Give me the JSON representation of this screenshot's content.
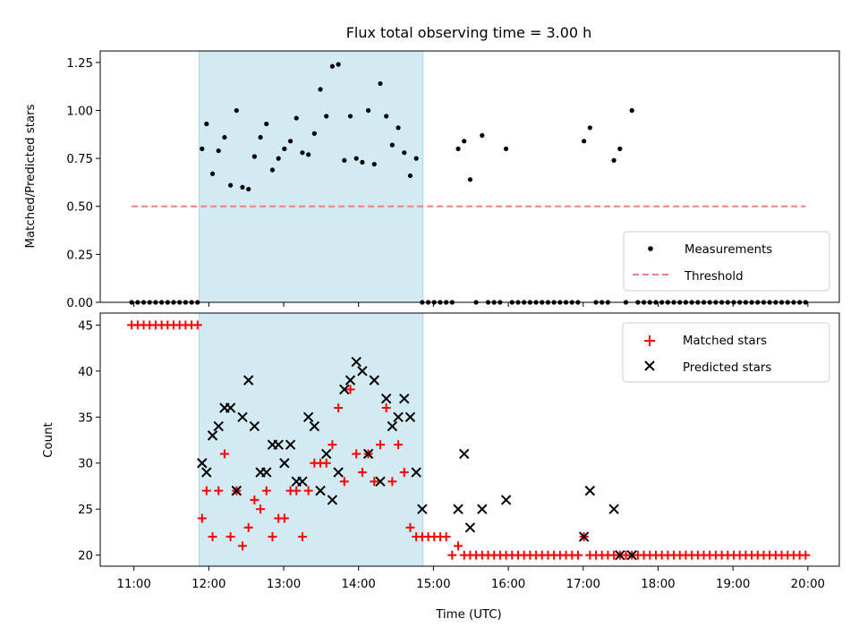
{
  "chart_data": [
    {
      "type": "scatter",
      "title": "Flux total observing time = 3.00 h",
      "xlabel": "",
      "ylabel": "Matched/Predicted stars",
      "x_unit": "decimal hours UTC",
      "xlim": [
        10.55,
        20.42
      ],
      "ylim": [
        0,
        1.31
      ],
      "x_ticks": [
        11,
        12,
        13,
        14,
        15,
        16,
        17,
        18,
        19,
        20
      ],
      "y_ticks": [
        0,
        0.25,
        0.5,
        0.75,
        1.0,
        1.25
      ],
      "y_tick_labels": [
        "0.00",
        "0.25",
        "0.50",
        "0.75",
        "1.00",
        "1.25"
      ],
      "highlight_span": {
        "x0": 11.87,
        "x1": 14.86,
        "color": "#add8e6"
      },
      "grid": false,
      "legend_position": "lower-right",
      "series": [
        {
          "name": "Measurements",
          "marker": "dot",
          "color": "#000000",
          "x": [
            10.97,
            11.05,
            11.13,
            11.21,
            11.29,
            11.37,
            11.45,
            11.53,
            11.61,
            11.69,
            11.77,
            11.85,
            11.91,
            11.97,
            12.05,
            12.13,
            12.21,
            12.29,
            12.37,
            12.45,
            12.53,
            12.61,
            12.69,
            12.77,
            12.85,
            12.93,
            13.01,
            13.09,
            13.17,
            13.25,
            13.33,
            13.41,
            13.49,
            13.57,
            13.65,
            13.73,
            13.81,
            13.89,
            13.97,
            14.05,
            14.13,
            14.21,
            14.29,
            14.37,
            14.45,
            14.53,
            14.61,
            14.69,
            14.77,
            14.85,
            14.93,
            15.01,
            15.09,
            15.17,
            15.25,
            15.33,
            15.41,
            15.49,
            15.57,
            15.65,
            15.73,
            15.81,
            15.89,
            15.97,
            16.05,
            16.13,
            16.21,
            16.29,
            16.37,
            16.45,
            16.53,
            16.61,
            16.69,
            16.77,
            16.85,
            16.93,
            17.01,
            17.09,
            17.17,
            17.25,
            17.33,
            17.41,
            17.49,
            17.57,
            17.65,
            17.73,
            17.81,
            17.89,
            17.97,
            18.05,
            18.13,
            18.21,
            18.29,
            18.37,
            18.45,
            18.53,
            18.61,
            18.69,
            18.77,
            18.85,
            18.93,
            19.01,
            19.09,
            19.17,
            19.25,
            19.33,
            19.41,
            19.49,
            19.57,
            19.65,
            19.73,
            19.81,
            19.89,
            19.97
          ],
          "y": [
            0,
            0,
            0,
            0,
            0,
            0,
            0,
            0,
            0,
            0,
            0,
            0,
            0.8,
            0.93,
            0.67,
            0.79,
            0.86,
            0.61,
            1.0,
            0.6,
            0.59,
            0.76,
            0.86,
            0.93,
            0.69,
            0.75,
            0.8,
            0.84,
            0.96,
            0.78,
            0.77,
            0.88,
            1.11,
            0.97,
            1.23,
            1.24,
            0.74,
            0.97,
            0.75,
            0.73,
            1.0,
            0.72,
            1.14,
            0.97,
            0.82,
            0.91,
            0.78,
            0.66,
            0.75,
            0,
            0,
            0,
            0,
            0,
            0,
            0.8,
            0.84,
            0.64,
            0,
            0.87,
            0,
            0,
            0,
            0.8,
            0,
            0,
            0,
            0,
            0,
            0,
            0,
            0,
            0,
            0,
            0,
            0,
            0.84,
            0.91,
            0,
            0,
            0,
            0.74,
            0.8,
            0,
            1.0,
            0,
            0,
            0,
            0,
            0,
            0,
            0,
            0,
            0,
            0,
            0,
            0,
            0,
            0,
            0,
            0,
            0,
            0,
            0,
            0,
            0,
            0,
            0,
            0,
            0,
            0,
            0,
            0,
            0
          ]
        },
        {
          "name": "Threshold",
          "style": "dashed",
          "color": "#f08080",
          "x": [
            10.97,
            19.97
          ],
          "y": [
            0.5,
            0.5
          ]
        }
      ]
    },
    {
      "type": "scatter",
      "title": "",
      "xlabel": "Time (UTC)",
      "ylabel": "Count",
      "x_unit": "decimal hours UTC",
      "xlim": [
        10.55,
        20.42
      ],
      "ylim": [
        18.8,
        46.3
      ],
      "x_ticks": [
        11,
        12,
        13,
        14,
        15,
        16,
        17,
        18,
        19,
        20
      ],
      "x_tick_labels": [
        "11:00",
        "12:00",
        "13:00",
        "14:00",
        "15:00",
        "16:00",
        "17:00",
        "18:00",
        "19:00",
        "20:00"
      ],
      "y_ticks": [
        20,
        25,
        30,
        35,
        40,
        45
      ],
      "y_tick_labels": [
        "20",
        "25",
        "30",
        "35",
        "40",
        "45"
      ],
      "highlight_span": {
        "x0": 11.87,
        "x1": 14.86,
        "color": "#add8e6"
      },
      "grid": false,
      "legend_position": "upper-right",
      "series": [
        {
          "name": "Matched stars",
          "marker": "plus",
          "color": "#ff0000",
          "x": [
            10.97,
            11.05,
            11.13,
            11.21,
            11.29,
            11.37,
            11.45,
            11.53,
            11.61,
            11.69,
            11.77,
            11.85,
            11.91,
            11.97,
            12.05,
            12.13,
            12.21,
            12.29,
            12.37,
            12.45,
            12.53,
            12.61,
            12.69,
            12.77,
            12.85,
            12.93,
            13.01,
            13.09,
            13.17,
            13.25,
            13.33,
            13.41,
            13.49,
            13.57,
            13.65,
            13.73,
            13.81,
            13.89,
            13.97,
            14.05,
            14.13,
            14.21,
            14.29,
            14.37,
            14.45,
            14.53,
            14.61,
            14.69,
            14.77,
            14.85,
            14.93,
            15.01,
            15.09,
            15.17,
            15.25,
            15.33,
            15.41,
            15.49,
            15.57,
            15.65,
            15.73,
            15.81,
            15.89,
            15.97,
            16.05,
            16.13,
            16.21,
            16.29,
            16.37,
            16.45,
            16.53,
            16.61,
            16.69,
            16.77,
            16.85,
            16.93,
            17.01,
            17.09,
            17.17,
            17.25,
            17.33,
            17.41,
            17.49,
            17.57,
            17.65,
            17.73,
            17.81,
            17.89,
            17.97,
            18.05,
            18.13,
            18.21,
            18.29,
            18.37,
            18.45,
            18.53,
            18.61,
            18.69,
            18.77,
            18.85,
            18.93,
            19.01,
            19.09,
            19.17,
            19.25,
            19.33,
            19.41,
            19.49,
            19.57,
            19.65,
            19.73,
            19.81,
            19.89,
            19.97
          ],
          "y": [
            45,
            45,
            45,
            45,
            45,
            45,
            45,
            45,
            45,
            45,
            45,
            45,
            24,
            27,
            22,
            27,
            31,
            22,
            27,
            21,
            23,
            26,
            25,
            27,
            22,
            24,
            24,
            27,
            27,
            22,
            27,
            30,
            30,
            30,
            32,
            36,
            28,
            38,
            31,
            29,
            31,
            28,
            32,
            36,
            28,
            32,
            29,
            23,
            22,
            22,
            22,
            22,
            22,
            22,
            20,
            21,
            20,
            20,
            20,
            20,
            20,
            20,
            20,
            20,
            20,
            20,
            20,
            20,
            20,
            20,
            20,
            20,
            20,
            20,
            20,
            20,
            22,
            20,
            20,
            20,
            20,
            20,
            20,
            20,
            20,
            20,
            20,
            20,
            20,
            20,
            20,
            20,
            20,
            20,
            20,
            20,
            20,
            20,
            20,
            20,
            20,
            20,
            20,
            20,
            20,
            20,
            20,
            20,
            20,
            20,
            20,
            20,
            20,
            20
          ]
        },
        {
          "name": "Predicted stars",
          "marker": "x",
          "color": "#000000",
          "x": [
            11.91,
            11.97,
            12.05,
            12.13,
            12.21,
            12.29,
            12.37,
            12.45,
            12.53,
            12.61,
            12.69,
            12.77,
            12.85,
            12.93,
            13.01,
            13.09,
            13.17,
            13.25,
            13.33,
            13.41,
            13.49,
            13.57,
            13.65,
            13.73,
            13.81,
            13.89,
            13.97,
            14.05,
            14.13,
            14.21,
            14.29,
            14.37,
            14.45,
            14.53,
            14.61,
            14.69,
            14.77,
            14.85,
            15.33,
            15.41,
            15.49,
            15.65,
            15.97,
            17.01,
            17.09,
            17.41,
            17.49,
            17.65
          ],
          "y": [
            30,
            29,
            33,
            34,
            36,
            36,
            27,
            35,
            39,
            34,
            29,
            29,
            32,
            32,
            30,
            32,
            28,
            28,
            35,
            34,
            27,
            31,
            26,
            29,
            38,
            39,
            41,
            40,
            31,
            39,
            28,
            37,
            34,
            35,
            37,
            35,
            29,
            25,
            25,
            31,
            23,
            25,
            26,
            22,
            27,
            25,
            20,
            null
          ]
        }
      ]
    }
  ]
}
